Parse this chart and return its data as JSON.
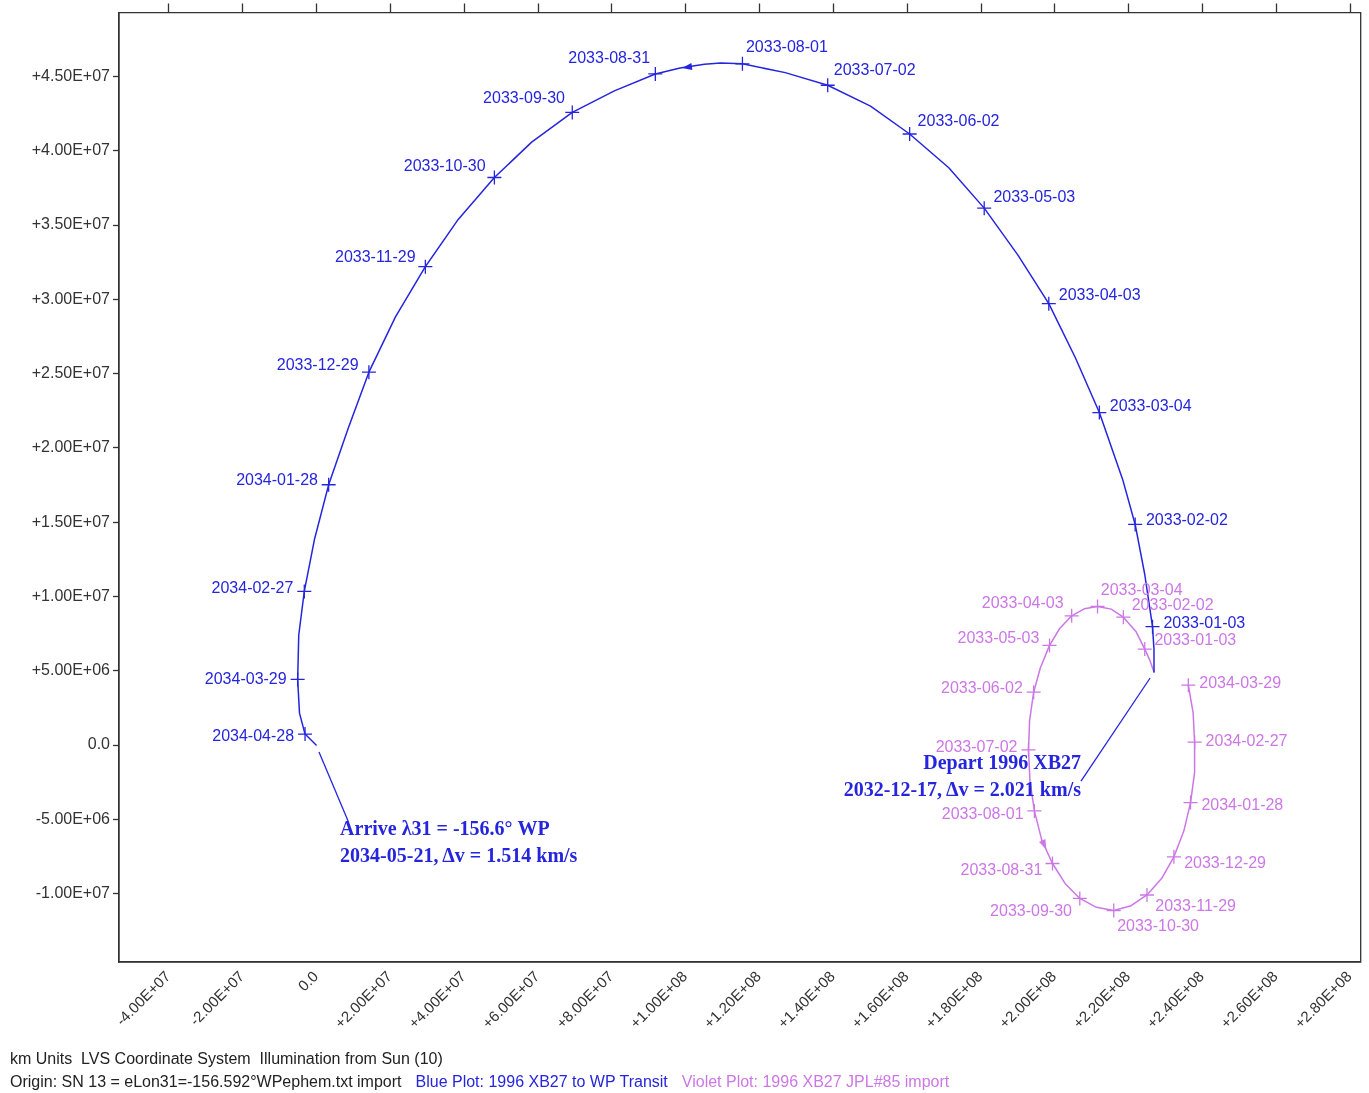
{
  "chart_data": {
    "type": "line",
    "xlim": [
      -53400000.0,
      283000000.0
    ],
    "ylim": [
      -14600000.0,
      49300000.0
    ],
    "xticks": [
      {
        "value": -40000000.0,
        "label": "-4.00E+07"
      },
      {
        "value": -20000000.0,
        "label": "-2.00E+07"
      },
      {
        "value": 0,
        "label": "0.0"
      },
      {
        "value": 20000000.0,
        "label": "+2.00E+07"
      },
      {
        "value": 40000000.0,
        "label": "+4.00E+07"
      },
      {
        "value": 60000000.0,
        "label": "+6.00E+07"
      },
      {
        "value": 80000000.0,
        "label": "+8.00E+07"
      },
      {
        "value": 100000000.0,
        "label": "+1.00E+08"
      },
      {
        "value": 120000000.0,
        "label": "+1.20E+08"
      },
      {
        "value": 140000000.0,
        "label": "+1.40E+08"
      },
      {
        "value": 160000000.0,
        "label": "+1.60E+08"
      },
      {
        "value": 180000000.0,
        "label": "+1.80E+08"
      },
      {
        "value": 200000000.0,
        "label": "+2.00E+08"
      },
      {
        "value": 220000000.0,
        "label": "+2.20E+08"
      },
      {
        "value": 240000000.0,
        "label": "+2.40E+08"
      },
      {
        "value": 260000000.0,
        "label": "+2.60E+08"
      },
      {
        "value": 280000000.0,
        "label": "+2.80E+08"
      }
    ],
    "yticks": [
      {
        "value": -10000000.0,
        "label": "-1.00E+07"
      },
      {
        "value": -5000000.0,
        "label": "-5.00E+06"
      },
      {
        "value": 0,
        "label": "0.0"
      },
      {
        "value": 5000000.0,
        "label": "+5.00E+06"
      },
      {
        "value": 10000000.0,
        "label": "+1.00E+07"
      },
      {
        "value": 15000000.0,
        "label": "+1.50E+07"
      },
      {
        "value": 20000000.0,
        "label": "+2.00E+07"
      },
      {
        "value": 25000000.0,
        "label": "+2.50E+07"
      },
      {
        "value": 30000000.0,
        "label": "+3.00E+07"
      },
      {
        "value": 35000000.0,
        "label": "+3.50E+07"
      },
      {
        "value": 40000000.0,
        "label": "+4.00E+07"
      },
      {
        "value": 45000000.0,
        "label": "+4.50E+07"
      }
    ],
    "grid": false,
    "legend": "bottom",
    "line_style": "solid",
    "series": [
      {
        "name": "Blue Plot: 1996 XB27 to WP Transit",
        "color": "#2525dd",
        "marker": "none",
        "x": [
          227000000.0,
          227000000.0,
          226600000.0,
          224500000.0,
          221900000.0,
          218600000.0,
          212200000.0,
          205700000.0,
          198500000.0,
          190100000.0,
          181000000.0,
          171400000.0,
          160800000.0,
          150200000.0,
          138600000.0,
          127100000.0,
          115500000.0,
          109600000.0,
          105200000.0,
          98600000.0,
          91900000.0,
          80800000.0,
          69400000.0,
          58400000.0,
          48300000.0,
          38500000.0,
          29600000.0,
          21500000.0,
          14300000.0,
          8700000.0,
          3400000.0,
          -400000.0,
          -3200000.0,
          -4700000.0,
          -5000000.0,
          -4500000.0,
          -3000000.0,
          0
        ],
        "values": [
          4920000.0,
          6440000.0,
          7970000.0,
          11480000.0,
          14850000.0,
          17800000.0,
          22380000.0,
          26070000.0,
          29710000.0,
          32990000.0,
          36140000.0,
          38860000.0,
          41130000.0,
          43010000.0,
          44410000.0,
          45260000.0,
          45850000.0,
          45910000.0,
          45820000.0,
          45570000.0,
          45170000.0,
          44030000.0,
          42580000.0,
          40580000.0,
          38200000.0,
          35380000.0,
          32200000.0,
          28820000.0,
          25100000.0,
          21320000.0,
          17520000.0,
          13890000.0,
          10340000.0,
          7410000.0,
          4420000.0,
          2150000.0,
          740000.0,
          0
        ]
      },
      {
        "name": "Violet Plot: 1996 XB27 JPL#85 import",
        "color": "#cc77e6",
        "marker": "none",
        "x": [
          227000000.0,
          225900000.0,
          224500000.0,
          222100000.0,
          218700000.0,
          215400000.0,
          211700000.0,
          208100000.0,
          204700000.0,
          201400000.0,
          198700000.0,
          196200000.0,
          194400000.0,
          193300000.0,
          193000000.0,
          193400000.0,
          194600000.0,
          196600000.0,
          199500000.0,
          202900000.0,
          206900000.0,
          211400000.0,
          216100000.0,
          220800000.0,
          225100000.0,
          229100000.0,
          232400000.0,
          235100000.0,
          236900000.0,
          238000000.0,
          238000000.0,
          237600000.0,
          236300000.0
        ],
        "values": [
          4920000.0,
          5700000.0,
          6460000.0,
          7650000.0,
          8610000.0,
          9150000.0,
          9330000.0,
          9170000.0,
          8700000.0,
          7830000.0,
          6710000.0,
          5190000.0,
          3560000.0,
          1660000.0,
          -320000.0,
          -2420000.0,
          -4430000.0,
          -6400000.0,
          -7970000.0,
          -9310000.0,
          -10320000.0,
          -10920000.0,
          -11140000.0,
          -10810000.0,
          -10090000.0,
          -8970000.0,
          -7520000.0,
          -5770000.0,
          -3870000.0,
          -1860000.0,
          200000.0,
          2170000.0,
          4030000.0
        ]
      },
      {
        "type": "scatter",
        "color": "#2525dd",
        "marker": "cross",
        "x": [
          226600000.0,
          221900000.0,
          212200000.0,
          198500000.0,
          181000000.0,
          160800000.0,
          138600000.0,
          115500000.0,
          91900000.0,
          69400000.0,
          48300000.0,
          29600000.0,
          14300000.0,
          3400000.0,
          -3200000.0,
          -5000000.0,
          -3000000.0
        ],
        "values": [
          7970000.0,
          14850000.0,
          22380000.0,
          29710000.0,
          36140000.0,
          41130000.0,
          44410000.0,
          45850000.0,
          45170000.0,
          42580000.0,
          38200000.0,
          32200000.0,
          25100000.0,
          17520000.0,
          10340000.0,
          4420000.0,
          740000.0
        ],
        "value_labels": [
          "2033-01-03",
          "2033-02-02",
          "2033-03-04",
          "2033-04-03",
          "2033-05-03",
          "2033-06-02",
          "2033-07-02",
          "2033-08-01",
          "2033-08-31",
          "2033-09-30",
          "2033-10-30",
          "2033-11-29",
          "2033-12-29",
          "2034-01-28",
          "2034-02-27",
          "2034-03-29",
          "2034-04-28"
        ]
      },
      {
        "type": "scatter",
        "color": "#cc77e6",
        "marker": "cross",
        "x": [
          224500000.0,
          218700000.0,
          211700000.0,
          204700000.0,
          198700000.0,
          194400000.0,
          193000000.0,
          194600000.0,
          199500000.0,
          206900000.0,
          216100000.0,
          225100000.0,
          232400000.0,
          236900000.0,
          238000000.0,
          236300000.0
        ],
        "values": [
          6460000.0,
          8610000.0,
          9330000.0,
          8700000.0,
          6710000.0,
          3560000.0,
          -320000.0,
          -4430000.0,
          -7970000.0,
          -10320000.0,
          -11140000.0,
          -10090000.0,
          -7520000.0,
          -3870000.0,
          200000.0,
          4030000.0
        ],
        "value_labels": [
          "2033-01-03",
          "2033-02-02",
          "2033-03-04",
          "2033-04-03",
          "2033-05-03",
          "2033-06-02",
          "2033-07-02",
          "2033-08-01",
          "2033-08-31",
          "2033-09-30",
          "2033-10-30",
          "2033-11-29",
          "2033-12-29",
          "2034-01-28",
          "2034-02-27",
          "2034-03-29"
        ]
      }
    ],
    "annotations": [
      {
        "text": "Depart 1996 XB27\n2032-12-17, Δv = 2.021 km/s",
        "x": 227000000.0,
        "y": 4920000.0
      },
      {
        "text": "Arrive λ31 = -156.6° WP\n2034-05-21, Δv = 1.514 km/s",
        "x": 0,
        "y": 0
      },
      "km Units  LVS Coordinate System  Illumination from Sun (10)",
      "Origin: SN 13 = eLon31=-156.592°WPephem.txt import"
    ]
  }
}
